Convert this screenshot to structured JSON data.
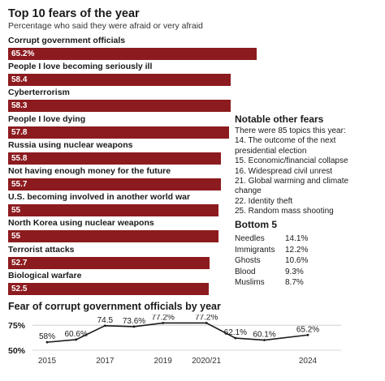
{
  "chart_data": [
    {
      "type": "bar",
      "orientation": "horizontal",
      "title": "Top 10 fears of the year",
      "subtitle": "Percentage who said they were afraid or very afraid",
      "categories": [
        "Corrupt government officials",
        "People I love becoming seriously ill",
        "Cyberterrorism",
        "People I love dying",
        "Russia using nuclear weapons",
        "Not having enough money for the future",
        "U.S. becoming involved in another world war",
        "North Korea using nuclear weapons",
        "Terrorist attacks",
        "Biological warfare"
      ],
      "values": [
        65.2,
        58.4,
        58.3,
        57.8,
        55.8,
        55.7,
        55,
        55,
        52.7,
        52.5
      ],
      "value_labels": [
        "65.2%",
        "58.4",
        "58.3",
        "57.8",
        "55.8",
        "55.7",
        "55",
        "55",
        "52.7",
        "52.5"
      ],
      "xlim": [
        0,
        100
      ],
      "color": "#8c1b1f"
    },
    {
      "type": "line",
      "title": "Fear of corrupt government officials by year",
      "x": [
        2015,
        2016,
        2017,
        2018,
        2019,
        2020.5,
        2021.5,
        2022.5,
        2024
      ],
      "values": [
        58,
        60.6,
        74.5,
        73.6,
        77.2,
        77.2,
        62.1,
        60.1,
        65.2
      ],
      "value_labels": [
        "58%",
        "60.6%",
        "74.5",
        "73.6%",
        "77.2%",
        "77.2%",
        "62.1%",
        "60.1%",
        "65.2%"
      ],
      "x_ticks": [
        2015,
        2017,
        2019,
        2020.5,
        2024
      ],
      "x_tick_labels": [
        "2015",
        "2017",
        "2019",
        "2020/21",
        "2024"
      ],
      "y_ticks": [
        75,
        50
      ],
      "y_tick_labels": [
        "75%",
        "50%"
      ],
      "ylim": [
        50,
        80
      ],
      "color": "#1a1a1a"
    }
  ],
  "notable": {
    "title": "Notable other fears",
    "lines": [
      "There were 85 topics this year:",
      "14. The outcome of the next",
      "presidential election",
      "15. Economic/financial collapse",
      "16. Widespread civil unrest",
      "21. Global warming and climate",
      "change",
      "22. Identity theft",
      "25. Random mass shooting"
    ]
  },
  "bottom5": {
    "title": "Bottom 5",
    "rows": [
      {
        "name": "Needles",
        "value": "14.1%"
      },
      {
        "name": "Immigrants",
        "value": "12.2%"
      },
      {
        "name": "Ghosts",
        "value": "10.6%"
      },
      {
        "name": "Blood",
        "value": "9.3%"
      },
      {
        "name": "Muslims",
        "value": "8.7%"
      }
    ]
  }
}
